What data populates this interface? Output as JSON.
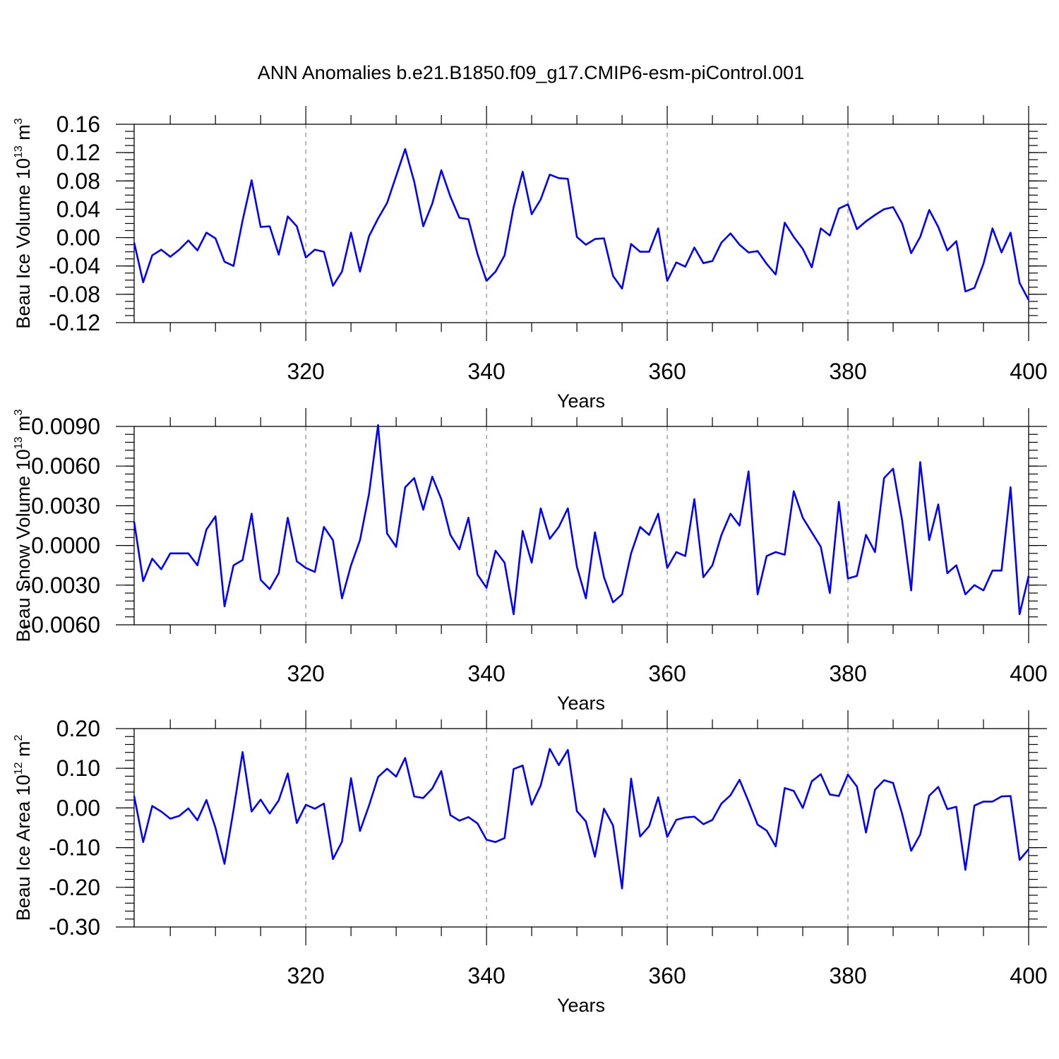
{
  "title": "ANN Anomalies b.e21.B1850.f09_g17.CMIP6-esm-piControl.001",
  "chart_data": [
    {
      "type": "line",
      "ylabel": "Beau Ice Volume 10",
      "ylabel_sup": "13",
      "ylabel_unit": " m",
      "ylabel_unit_sup": "3",
      "xlabel": "Years",
      "xlim": [
        301,
        400
      ],
      "ylim": [
        -0.12,
        0.16
      ],
      "yticks": [
        "0.16",
        "0.12",
        "0.08",
        "0.04",
        "0.00",
        "-0.04",
        "-0.08",
        "-0.12"
      ],
      "xticks": [
        "320",
        "340",
        "360",
        "380",
        "400"
      ],
      "grid_x": [
        320,
        340,
        360,
        380
      ],
      "color": "#0000ff",
      "x": [
        301,
        302,
        303,
        304,
        305,
        306,
        307,
        308,
        309,
        310,
        311,
        312,
        313,
        314,
        315,
        316,
        317,
        318,
        319,
        320,
        321,
        322,
        323,
        324,
        325,
        326,
        327,
        328,
        329,
        330,
        331,
        332,
        333,
        334,
        335,
        336,
        337,
        338,
        339,
        340,
        341,
        342,
        343,
        344,
        345,
        346,
        347,
        348,
        349,
        350,
        351,
        352,
        353,
        354,
        355,
        356,
        357,
        358,
        359,
        360,
        361,
        362,
        363,
        364,
        365,
        366,
        367,
        368,
        369,
        370,
        371,
        372,
        373,
        374,
        375,
        376,
        377,
        378,
        379,
        380,
        381,
        382,
        383,
        384,
        385,
        386,
        387,
        388,
        389,
        390,
        391,
        392,
        393,
        394,
        395,
        396,
        397,
        398,
        399,
        400
      ],
      "values": [
        -0.007,
        -0.063,
        -0.025,
        -0.017,
        -0.027,
        -0.017,
        -0.004,
        -0.018,
        0.007,
        -0.001,
        -0.034,
        -0.04,
        0.024,
        0.081,
        0.015,
        0.016,
        -0.024,
        0.03,
        0.016,
        -0.028,
        -0.017,
        -0.02,
        -0.068,
        -0.048,
        0.007,
        -0.048,
        0.002,
        0.027,
        0.049,
        0.087,
        0.125,
        0.079,
        0.016,
        0.048,
        0.095,
        0.058,
        0.028,
        0.026,
        -0.023,
        -0.061,
        -0.048,
        -0.025,
        0.043,
        0.093,
        0.033,
        0.054,
        0.089,
        0.084,
        0.083,
        0.001,
        -0.01,
        -0.002,
        -0.001,
        -0.054,
        -0.072,
        -0.009,
        -0.02,
        -0.02,
        0.013,
        -0.061,
        -0.035,
        -0.041,
        -0.014,
        -0.036,
        -0.033,
        -0.007,
        0.006,
        -0.01,
        -0.021,
        -0.019,
        -0.037,
        -0.052,
        0.021,
        0.001,
        -0.016,
        -0.042,
        0.013,
        0.003,
        0.041,
        0.047,
        0.012,
        0.023,
        0.032,
        0.04,
        0.043,
        0.02,
        -0.022,
        0.001,
        0.039,
        0.015,
        -0.018,
        -0.005,
        -0.076,
        -0.071,
        -0.037,
        0.013,
        -0.021,
        0.007,
        -0.064,
        -0.088
      ]
    },
    {
      "type": "line",
      "ylabel": "Beau Snow Volume 10",
      "ylabel_sup": "13",
      "ylabel_unit": " m",
      "ylabel_unit_sup": "3",
      "xlabel": "Years",
      "xlim": [
        301,
        400
      ],
      "ylim": [
        -0.006,
        0.009
      ],
      "yticks": [
        "0.0090",
        "0.0060",
        "0.0030",
        "0.0000",
        "-0.0030",
        "-0.0060"
      ],
      "xticks": [
        "320",
        "340",
        "360",
        "380",
        "400"
      ],
      "grid_x": [
        320,
        340,
        360,
        380
      ],
      "color": "#0000ff",
      "x": [
        301,
        302,
        303,
        304,
        305,
        306,
        307,
        308,
        309,
        310,
        311,
        312,
        313,
        314,
        315,
        316,
        317,
        318,
        319,
        320,
        321,
        322,
        323,
        324,
        325,
        326,
        327,
        328,
        329,
        330,
        331,
        332,
        333,
        334,
        335,
        336,
        337,
        338,
        339,
        340,
        341,
        342,
        343,
        344,
        345,
        346,
        347,
        348,
        349,
        350,
        351,
        352,
        353,
        354,
        355,
        356,
        357,
        358,
        359,
        360,
        361,
        362,
        363,
        364,
        365,
        366,
        367,
        368,
        369,
        370,
        371,
        372,
        373,
        374,
        375,
        376,
        377,
        378,
        379,
        380,
        381,
        382,
        383,
        384,
        385,
        386,
        387,
        388,
        389,
        390,
        391,
        392,
        393,
        394,
        395,
        396,
        397,
        398,
        399,
        400
      ],
      "values": [
        0.0018,
        -0.0027,
        -0.001,
        -0.0018,
        -0.0006,
        -0.0006,
        -0.0006,
        -0.0015,
        0.0012,
        0.0022,
        -0.0046,
        -0.0015,
        -0.0011,
        0.0024,
        -0.0026,
        -0.0033,
        -0.0021,
        0.0021,
        -0.0012,
        -0.0017,
        -0.002,
        0.0014,
        0.0004,
        -0.004,
        -0.0015,
        0.0004,
        0.0039,
        0.0091,
        0.0009,
        -0.0001,
        0.0044,
        0.0051,
        0.0027,
        0.0052,
        0.0035,
        0.0008,
        -0.0003,
        0.0021,
        -0.0022,
        -0.0032,
        -0.0004,
        -0.0013,
        -0.0052,
        0.0011,
        -0.0013,
        0.0028,
        0.0005,
        0.0014,
        0.0028,
        -0.0016,
        -0.004,
        0.001,
        -0.0024,
        -0.0043,
        -0.0037,
        -0.0006,
        0.0014,
        0.0008,
        0.0024,
        -0.0017,
        -0.0005,
        -0.0008,
        0.0035,
        -0.0024,
        -0.0015,
        0.0008,
        0.0024,
        0.0015,
        0.0056,
        -0.0037,
        -0.0008,
        -0.0005,
        -0.0007,
        0.0041,
        0.0021,
        0.001,
        -0.0001,
        -0.0036,
        0.0033,
        -0.0025,
        -0.0023,
        0.0008,
        -0.0005,
        0.0051,
        0.0058,
        0.0019,
        -0.0034,
        0.0063,
        0.0004,
        0.0031,
        -0.0021,
        -0.0015,
        -0.0037,
        -0.003,
        -0.0034,
        -0.0019,
        -0.0019,
        0.0044,
        -0.0052,
        -0.0023
      ]
    },
    {
      "type": "line",
      "ylabel": "Beau Ice Area 10",
      "ylabel_sup": "12",
      "ylabel_unit": " m",
      "ylabel_unit_sup": "2",
      "xlabel": "Years",
      "xlim": [
        301,
        400
      ],
      "ylim": [
        -0.3,
        0.2
      ],
      "yticks": [
        "0.20",
        "0.10",
        "0.00",
        "-0.10",
        "-0.20",
        "-0.30"
      ],
      "xticks": [
        "320",
        "340",
        "360",
        "380",
        "400"
      ],
      "grid_x": [
        320,
        340,
        360,
        380
      ],
      "color": "#0000ff",
      "x": [
        301,
        302,
        303,
        304,
        305,
        306,
        307,
        308,
        309,
        310,
        311,
        312,
        313,
        314,
        315,
        316,
        317,
        318,
        319,
        320,
        321,
        322,
        323,
        324,
        325,
        326,
        327,
        328,
        329,
        330,
        331,
        332,
        333,
        334,
        335,
        336,
        337,
        338,
        339,
        340,
        341,
        342,
        343,
        344,
        345,
        346,
        347,
        348,
        349,
        350,
        351,
        352,
        353,
        354,
        355,
        356,
        357,
        358,
        359,
        360,
        361,
        362,
        363,
        364,
        365,
        366,
        367,
        368,
        369,
        370,
        371,
        372,
        373,
        374,
        375,
        376,
        377,
        378,
        379,
        380,
        381,
        382,
        383,
        384,
        385,
        386,
        387,
        388,
        389,
        390,
        391,
        392,
        393,
        394,
        395,
        396,
        397,
        398,
        399,
        400
      ],
      "values": [
        0.03,
        -0.086,
        0.005,
        -0.009,
        -0.027,
        -0.02,
        -0.001,
        -0.031,
        0.02,
        -0.05,
        -0.141,
        -0.005,
        0.141,
        -0.009,
        0.021,
        -0.014,
        0.019,
        0.087,
        -0.038,
        0.008,
        -0.002,
        0.011,
        -0.129,
        -0.085,
        0.075,
        -0.058,
        0.006,
        0.078,
        0.099,
        0.079,
        0.126,
        0.029,
        0.025,
        0.049,
        0.093,
        -0.018,
        -0.032,
        -0.023,
        -0.039,
        -0.08,
        -0.086,
        -0.076,
        0.098,
        0.107,
        0.008,
        0.057,
        0.149,
        0.108,
        0.146,
        -0.008,
        -0.034,
        -0.123,
        -0.002,
        -0.044,
        -0.203,
        0.074,
        -0.072,
        -0.046,
        0.027,
        -0.073,
        -0.03,
        -0.024,
        -0.022,
        -0.041,
        -0.03,
        0.011,
        0.032,
        0.071,
        0.016,
        -0.042,
        -0.057,
        -0.097,
        0.05,
        0.043,
        0.0,
        0.067,
        0.085,
        0.034,
        0.03,
        0.084,
        0.054,
        -0.062,
        0.046,
        0.07,
        0.063,
        -0.015,
        -0.108,
        -0.067,
        0.031,
        0.053,
        -0.003,
        0.003,
        -0.156,
        0.006,
        0.016,
        0.016,
        0.029,
        0.03,
        -0.131,
        -0.104
      ]
    }
  ]
}
